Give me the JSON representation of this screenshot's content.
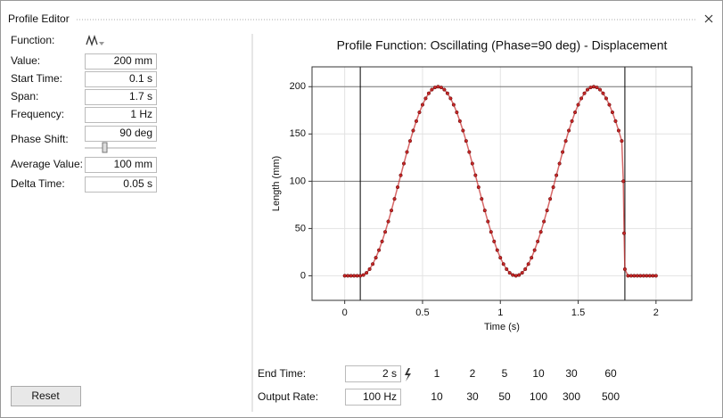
{
  "window": {
    "title": "Profile Editor"
  },
  "fields": [
    {
      "label": "Function:"
    },
    {
      "label": "Value:",
      "value": "200 mm"
    },
    {
      "label": "Start Time:",
      "value": "0.1 s"
    },
    {
      "label": "Span:",
      "value": "1.7 s"
    },
    {
      "label": "Frequency:",
      "value": "1 Hz"
    },
    {
      "label": "Phase Shift:",
      "value": "90 deg"
    },
    {
      "label": "Average Value:",
      "value": "100 mm"
    },
    {
      "label": "Delta Time:",
      "value": "0.05 s"
    }
  ],
  "reset": "Reset",
  "end_time": {
    "label": "End Time:",
    "value": "2 s",
    "options": [
      "1",
      "2",
      "5",
      "10",
      "30",
      "60"
    ]
  },
  "output_rate": {
    "label": "Output Rate:",
    "value": "100 Hz",
    "options": [
      "10",
      "30",
      "50",
      "100",
      "300",
      "500"
    ]
  },
  "chart_data": {
    "type": "line",
    "title": "Profile Function: Oscillating (Phase=90 deg) - Displacement",
    "x_label": "Time (s)",
    "y_label": "Length (mm)",
    "xlim": [
      -0.21,
      2.23
    ],
    "ylim": [
      -26,
      221
    ],
    "xticks": [
      0,
      0.5,
      1,
      1.5,
      2
    ],
    "yticks": [
      0,
      50,
      100,
      150,
      200
    ],
    "grid": true,
    "x_markers": [
      0.1,
      1.8
    ],
    "y_markers": [
      100,
      200
    ],
    "x": [
      0,
      0.02,
      0.04,
      0.06,
      0.08,
      0.1,
      0.12,
      0.14,
      0.16,
      0.18,
      0.2,
      0.22,
      0.24,
      0.26,
      0.28,
      0.3,
      0.32,
      0.34,
      0.36,
      0.38,
      0.4,
      0.42,
      0.44,
      0.46,
      0.48,
      0.5,
      0.52,
      0.54,
      0.56,
      0.58,
      0.6,
      0.62,
      0.64,
      0.66,
      0.68,
      0.7,
      0.72,
      0.74,
      0.76,
      0.78,
      0.8,
      0.82,
      0.84,
      0.86,
      0.88,
      0.9,
      0.92,
      0.94,
      0.96,
      0.98,
      1,
      1.02,
      1.04,
      1.06,
      1.08,
      1.1,
      1.12,
      1.14,
      1.16,
      1.18,
      1.2,
      1.22,
      1.24,
      1.26,
      1.28,
      1.3,
      1.32,
      1.34,
      1.36,
      1.38,
      1.4,
      1.42,
      1.44,
      1.46,
      1.48,
      1.5,
      1.52,
      1.54,
      1.56,
      1.58,
      1.6,
      1.62,
      1.64,
      1.66,
      1.68,
      1.7,
      1.72,
      1.74,
      1.76,
      1.78,
      1.79,
      1.795,
      1.8,
      1.82,
      1.84,
      1.86,
      1.88,
      1.9,
      1.92,
      1.94,
      1.96,
      1.98,
      2
    ],
    "series": [
      {
        "color": "#c62828",
        "values": [
          0,
          0,
          0,
          0,
          0,
          0,
          0.8,
          3.1,
          7.0,
          12.4,
          19.1,
          27.1,
          36.3,
          46.4,
          57.4,
          69.1,
          81.3,
          93.7,
          106.3,
          118.7,
          130.9,
          142.6,
          153.6,
          163.6,
          172.9,
          180.9,
          187.6,
          193.0,
          196.9,
          199.2,
          200,
          199.2,
          196.9,
          193.0,
          187.6,
          180.9,
          172.9,
          163.6,
          153.6,
          142.6,
          130.9,
          118.7,
          106.3,
          93.7,
          81.3,
          69.1,
          57.4,
          46.4,
          36.3,
          27.1,
          19.1,
          12.4,
          7.0,
          3.1,
          0.8,
          0,
          0.8,
          3.1,
          7.0,
          12.4,
          19.1,
          27.1,
          36.3,
          46.4,
          57.4,
          69.1,
          81.3,
          93.7,
          106.3,
          118.7,
          130.9,
          142.6,
          153.6,
          163.6,
          172.9,
          180.9,
          187.6,
          193.0,
          196.9,
          199.2,
          200,
          199.2,
          196.9,
          193.0,
          187.6,
          180.9,
          172.9,
          163.6,
          153.6,
          142.6,
          100,
          45,
          7,
          0,
          0,
          0,
          0,
          0,
          0,
          0,
          0,
          0,
          0
        ]
      }
    ]
  }
}
